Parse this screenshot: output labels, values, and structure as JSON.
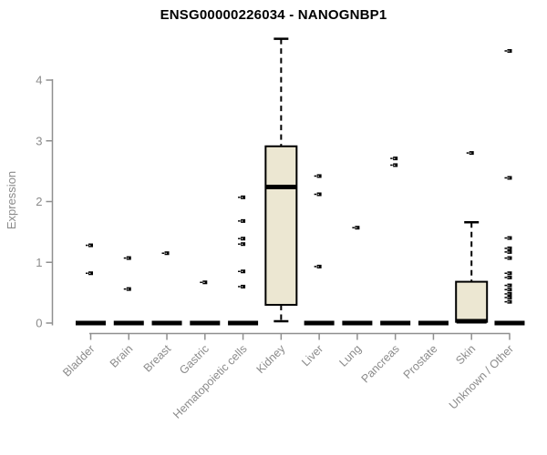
{
  "chart_data": {
    "type": "boxplot",
    "title": "ENSG00000226034 - NANOGNBP1",
    "ylabel": "Expression",
    "yticks": [
      0,
      1,
      2,
      3,
      4
    ],
    "ylim": [
      0,
      4.8
    ],
    "grid": false,
    "legend": null,
    "colors": {
      "box_fill": "#ece7d2",
      "box_stroke": "#000000",
      "median": "#000000",
      "outlier": "#000000",
      "axis": "#8f8f8f",
      "tick_text": "#8b8b8b",
      "title_text": "#000000",
      "background": "#ffffff"
    },
    "categories": [
      "Bladder",
      "Brain",
      "Breast",
      "Gastric",
      "Hematopoietic cells",
      "Kidney",
      "Liver",
      "Lung",
      "Pancreas",
      "Prostate",
      "Skin",
      "Unknown / Other"
    ],
    "series": [
      {
        "category": "Bladder",
        "q1": 0,
        "median": 0,
        "q3": 0,
        "whisker_low": null,
        "whisker_high": null,
        "outliers": [
          1.28,
          0.82
        ]
      },
      {
        "category": "Brain",
        "q1": 0,
        "median": 0,
        "q3": 0,
        "whisker_low": null,
        "whisker_high": null,
        "outliers": [
          1.07,
          0.56
        ]
      },
      {
        "category": "Breast",
        "q1": 0,
        "median": 0,
        "q3": 0,
        "whisker_low": null,
        "whisker_high": null,
        "outliers": [
          1.15
        ]
      },
      {
        "category": "Gastric",
        "q1": 0,
        "median": 0,
        "q3": 0,
        "whisker_low": null,
        "whisker_high": null,
        "outliers": [
          0.67
        ]
      },
      {
        "category": "Hematopoietic cells",
        "q1": 0,
        "median": 0,
        "q3": 0,
        "whisker_low": null,
        "whisker_high": null,
        "outliers": [
          2.07,
          1.68,
          1.39,
          1.3,
          0.85,
          0.6
        ]
      },
      {
        "category": "Kidney",
        "q1": 0.3,
        "median": 2.24,
        "q3": 2.91,
        "whisker_low": 0.03,
        "whisker_high": 4.68,
        "outliers": []
      },
      {
        "category": "Liver",
        "q1": 0,
        "median": 0,
        "q3": 0,
        "whisker_low": null,
        "whisker_high": null,
        "outliers": [
          2.42,
          2.12,
          0.93
        ]
      },
      {
        "category": "Lung",
        "q1": 0,
        "median": 0,
        "q3": 0,
        "whisker_low": null,
        "whisker_high": null,
        "outliers": [
          1.57
        ]
      },
      {
        "category": "Pancreas",
        "q1": 0,
        "median": 0,
        "q3": 0,
        "whisker_low": null,
        "whisker_high": null,
        "outliers": [
          2.71,
          2.6
        ]
      },
      {
        "category": "Prostate",
        "q1": 0,
        "median": 0,
        "q3": 0,
        "whisker_low": null,
        "whisker_high": null,
        "outliers": []
      },
      {
        "category": "Skin",
        "q1": 0.02,
        "median": 0.03,
        "q3": 0.68,
        "whisker_low": null,
        "whisker_high": 1.66,
        "outliers": [
          2.8
        ]
      },
      {
        "category": "Unknown / Other",
        "q1": 0,
        "median": 0,
        "q3": 0,
        "whisker_low": null,
        "whisker_high": null,
        "outliers": [
          4.48,
          2.39,
          1.4,
          1.23,
          1.17,
          1.07,
          0.82,
          0.75,
          0.62,
          0.55,
          0.48,
          0.42,
          0.35
        ]
      }
    ]
  }
}
